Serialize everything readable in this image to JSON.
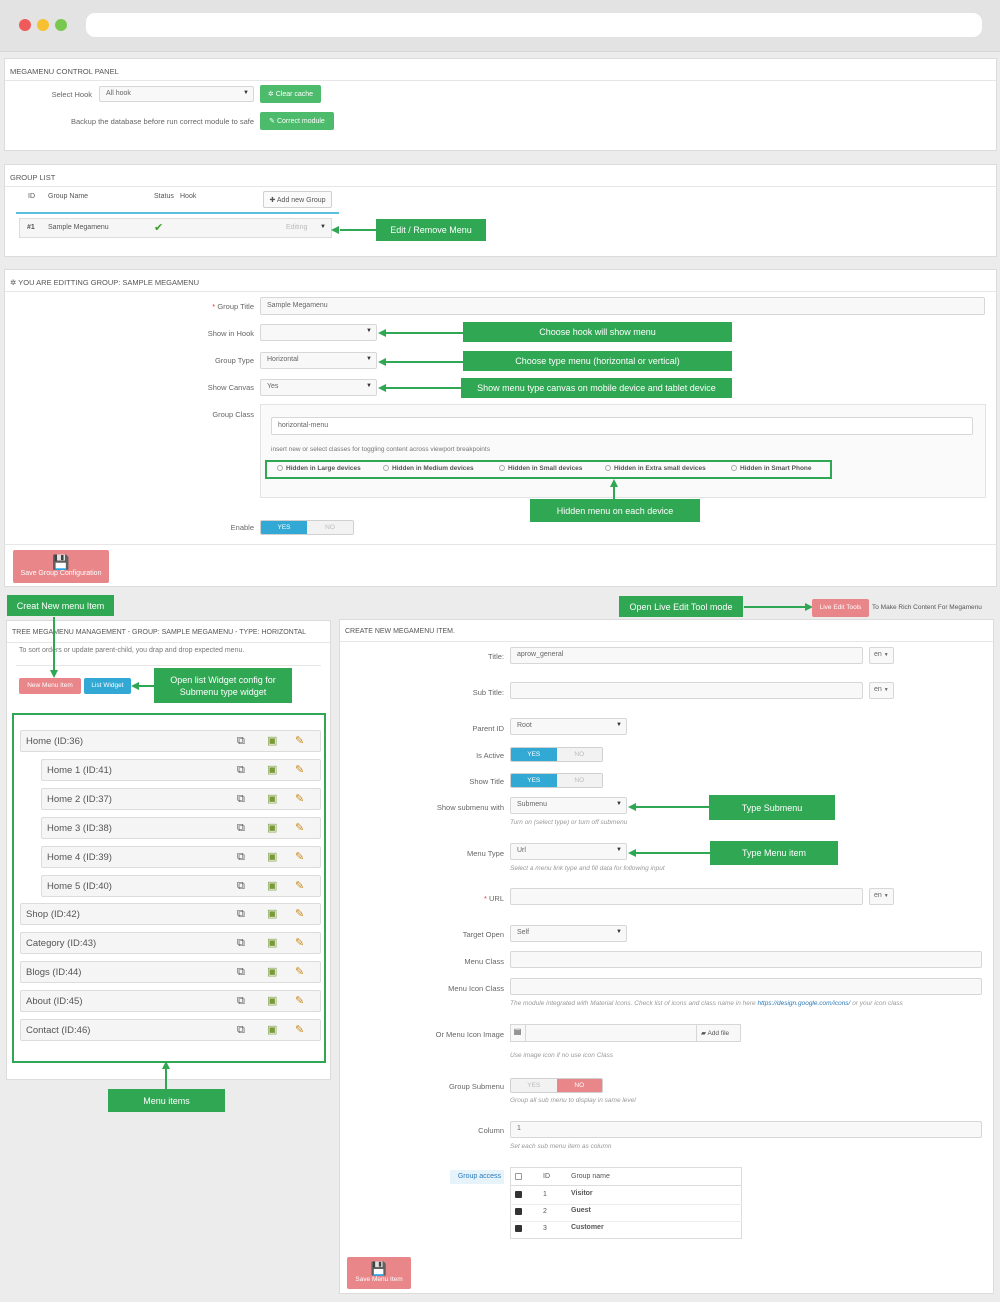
{
  "control_panel": {
    "title": "MEGAMENU CONTROL PANEL",
    "select_hook_label": "Select Hook",
    "select_hook_value": "All hook",
    "clear_cache": "Clear cache",
    "backup_label": "Backup the database before run correct module to safe",
    "correct_module": "Correct module"
  },
  "group_list": {
    "title": "GROUP LIST",
    "col_id": "ID",
    "col_name": "Group Name",
    "col_status": "Status",
    "col_hook": "Hook",
    "add_group": "Add new Group",
    "row_id": "#1",
    "row_name": "Sample Megamenu",
    "row_action": "Editing"
  },
  "edit_group": {
    "title": "YOU ARE EDITTING GROUP: SAMPLE MEGAMENU",
    "group_title_label": "Group Title",
    "group_title_value": "Sample Megamenu",
    "show_in_hook_label": "Show in Hook",
    "group_type_label": "Group Type",
    "group_type_value": "Horizontal",
    "show_canvas_label": "Show Canvas",
    "show_canvas_value": "Yes",
    "group_class_label": "Group Class",
    "group_class_value": "horizontal-menu",
    "class_hint": "insert new or select classes for toggling content across viewport breakpoints",
    "hidden_options": [
      "Hidden in Large devices",
      "Hidden in Medium devices",
      "Hidden in Small devices",
      "Hidden in Extra small devices",
      "Hidden in Smart Phone"
    ],
    "enable_label": "Enable",
    "yes": "YES",
    "no": "NO",
    "save": "Save Group Configuration"
  },
  "callouts": {
    "edit_remove": "Edit / Remove Menu",
    "choose_hook": "Choose hook will show menu",
    "choose_type": "Choose type menu (horizontal or vertical)",
    "show_canvas": "Show menu type canvas on mobile device and tablet device",
    "hidden_menu": "Hidden menu on each device",
    "creat_new": "Creat New menu Item",
    "open_live": "Open Live Edit Tool mode",
    "open_widget": "Open list Widget config for Submenu type widget",
    "menu_items": "Menu items",
    "type_submenu": "Type Submenu",
    "type_menu_item": "Type Menu item"
  },
  "live_edit": {
    "button": "Live Edit Tools",
    "text": "To Make Rich Content For Megamenu"
  },
  "tree": {
    "title": "TREE MEGAMENU MANAGEMENT - GROUP: SAMPLE MEGAMENU - TYPE: HORIZONTAL",
    "hint": "To sort orders or update parent-child, you drap and drop expected menu.",
    "new_item": "New Menu Item",
    "list_widget": "List Widget",
    "items": [
      {
        "label": "Home (ID:36)"
      },
      {
        "label": "Home 1 (ID:41)"
      },
      {
        "label": "Home 2 (ID:37)"
      },
      {
        "label": "Home 3 (ID:38)"
      },
      {
        "label": "Home 4 (ID:39)"
      },
      {
        "label": "Home 5 (ID:40)"
      },
      {
        "label": "Shop (ID:42)"
      },
      {
        "label": "Category (ID:43)"
      },
      {
        "label": "Blogs (ID:44)"
      },
      {
        "label": "About (ID:45)"
      },
      {
        "label": "Contact (ID:46)"
      }
    ]
  },
  "create": {
    "title": "CREATE NEW MEGAMENU ITEM.",
    "title_label": "Title:",
    "title_value": "aprow_general",
    "lang": "en",
    "subtitle_label": "Sub Title:",
    "parent_label": "Parent ID",
    "parent_value": "Root",
    "active_label": "Is Active",
    "show_title_label": "Show Title",
    "submenu_label": "Show submenu with",
    "submenu_value": "Submenu",
    "submenu_hint": "Turn on (select type) or turn off submenu",
    "menu_type_label": "Menu Type",
    "menu_type_value": "Url",
    "menu_type_hint": "Select a menu link type and fill data for following input",
    "url_label": "URL",
    "target_label": "Target Open",
    "target_value": "Self",
    "menu_class_label": "Menu Class",
    "icon_class_label": "Menu Icon Class",
    "icon_hint_pre": "The module integrated with Material Icons. Check list of icons and class name in here",
    "icon_hint_link": "https://design.google.com/icons/",
    "icon_hint_post": "or your icon class",
    "icon_image_label": "Or Menu Icon Image",
    "add_file": "Add file",
    "icon_image_hint": "Use image icon if no use icon Class",
    "group_submenu_label": "Group Submenu",
    "group_submenu_hint": "Group all sub menu to display in same level",
    "column_label": "Column",
    "column_value": "1",
    "column_hint": "Set each sub menu item as column",
    "group_access_label": "Group access",
    "access_col_id": "ID",
    "access_col_name": "Group name",
    "access_rows": [
      {
        "id": "1",
        "name": "Visitor"
      },
      {
        "id": "2",
        "name": "Guest"
      },
      {
        "id": "3",
        "name": "Customer"
      }
    ],
    "save": "Save Menu Item"
  },
  "colors": {
    "callout": "#2fa753",
    "green_button": "#4cbb6c",
    "red_button": "#e8868a",
    "blue_button": "#32a8d4"
  }
}
